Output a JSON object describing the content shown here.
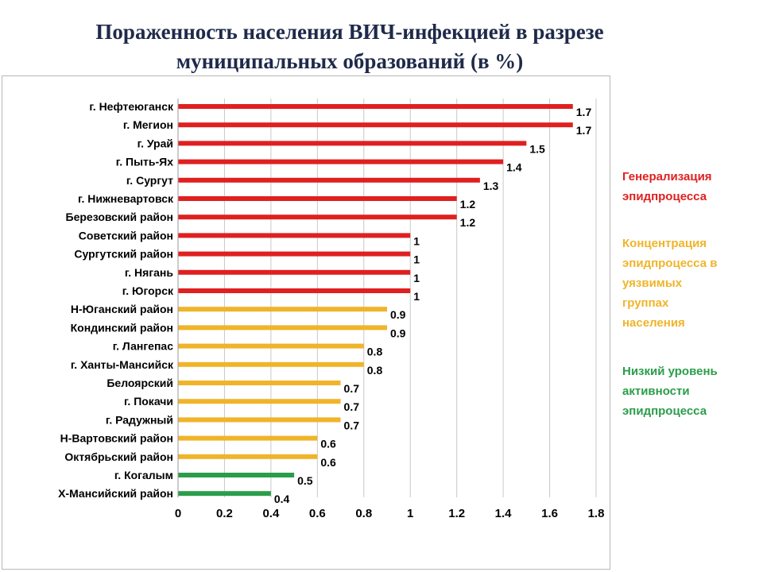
{
  "title": {
    "line1": "Пораженность населения ВИЧ-инфекцией в разрезе",
    "line2": "муниципальных образований (в %)"
  },
  "legend": [
    {
      "id": "red",
      "text": "Генерализация эпидпроцесса",
      "lines": [
        "Генерализация",
        "эпидпроцесса"
      ],
      "color": "#e02020"
    },
    {
      "id": "yellow",
      "text": "Концентрация эпидпроцесса в уязвимых группах населения",
      "lines": [
        "Концентрация",
        "эпидпроцесса в",
        "уязвимых",
        "группах",
        "населения"
      ],
      "color": "#f0b429"
    },
    {
      "id": "green",
      "text": "Низкий уровень активности эпидпроцесса",
      "lines": [
        "Низкий уровень",
        "активности",
        "эпидпроцесса"
      ],
      "color": "#2a9d4a"
    }
  ],
  "chart_data": {
    "type": "bar",
    "orientation": "horizontal",
    "title": "Пораженность населения ВИЧ-инфекцией в разрезе муниципальных образований (в %)",
    "xlim": [
      0,
      1.8
    ],
    "xticks": [
      "0",
      "0.2",
      "0.4",
      "0.6",
      "0.8",
      "1",
      "1.2",
      "1.4",
      "1.6",
      "1.8"
    ],
    "xtick_values": [
      0,
      0.2,
      0.4,
      0.6,
      0.8,
      1,
      1.2,
      1.4,
      1.6,
      1.8
    ],
    "grid": "vertical",
    "categories": [
      "г. Нефтеюганск",
      "г. Мегион",
      "г. Урай",
      "г. Пыть-Ях",
      "г. Сургут",
      "г. Нижневартовск",
      "Березовский район",
      "Советский район",
      "Сургутский район",
      "г. Нягань",
      "г. Югорск",
      "Н-Юганский район",
      "Кондинский район",
      "г. Лангепас",
      "г. Ханты-Мансийск",
      "Белоярский",
      "г. Покачи",
      "г. Радужный",
      "Н-Вартовский район",
      "Октябрьский район",
      "г. Когалым",
      "Х-Мансийский район"
    ],
    "values": [
      1.7,
      1.7,
      1.5,
      1.4,
      1.3,
      1.2,
      1.2,
      1,
      1,
      1,
      1,
      0.9,
      0.9,
      0.8,
      0.8,
      0.7,
      0.7,
      0.7,
      0.6,
      0.6,
      0.5,
      0.4
    ],
    "value_labels": [
      "1.7",
      "1.7",
      "1.5",
      "1.4",
      "1.3",
      "1.2",
      "1.2",
      "1",
      "1",
      "1",
      "1",
      "0.9",
      "0.9",
      "0.8",
      "0.8",
      "0.7",
      "0.7",
      "0.7",
      "0.6",
      "0.6",
      "0.5",
      "0.4"
    ],
    "groups": [
      "red",
      "red",
      "red",
      "red",
      "red",
      "red",
      "red",
      "red",
      "red",
      "red",
      "red",
      "yellow",
      "yellow",
      "yellow",
      "yellow",
      "yellow",
      "yellow",
      "yellow",
      "yellow",
      "yellow",
      "green",
      "green"
    ],
    "colors": {
      "red": "#e02020",
      "yellow": "#f0b429",
      "green": "#2a9d4a"
    }
  }
}
